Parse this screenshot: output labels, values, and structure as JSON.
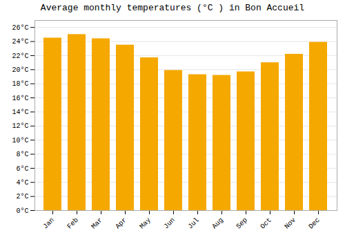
{
  "chart_data": {
    "type": "bar",
    "title": "Average monthly temperatures (°C ) in Bon Accueil",
    "categories": [
      "Jan",
      "Feb",
      "Mar",
      "Apr",
      "May",
      "Jun",
      "Jul",
      "Aug",
      "Sep",
      "Oct",
      "Nov",
      "Dec"
    ],
    "values": [
      24.5,
      25.0,
      24.4,
      23.5,
      21.7,
      19.9,
      19.3,
      19.2,
      19.7,
      21.0,
      22.2,
      23.9
    ],
    "color": "#F5A800",
    "ylim": [
      0,
      27
    ],
    "yticks": [
      {
        "value": 0,
        "label": "0°C"
      },
      {
        "value": 2,
        "label": "2°C"
      },
      {
        "value": 4,
        "label": "4°C"
      },
      {
        "value": 6,
        "label": "6°C"
      },
      {
        "value": 8,
        "label": "8°C"
      },
      {
        "value": 10,
        "label": "10°C"
      },
      {
        "value": 12,
        "label": "12°C"
      },
      {
        "value": 14,
        "label": "14°C"
      },
      {
        "value": 16,
        "label": "16°C"
      },
      {
        "value": 18,
        "label": "18°C"
      },
      {
        "value": 20,
        "label": "20°C"
      },
      {
        "value": 22,
        "label": "22°C"
      },
      {
        "value": 24,
        "label": "24°C"
      },
      {
        "value": 26,
        "label": "26°C"
      }
    ],
    "grid": true
  }
}
